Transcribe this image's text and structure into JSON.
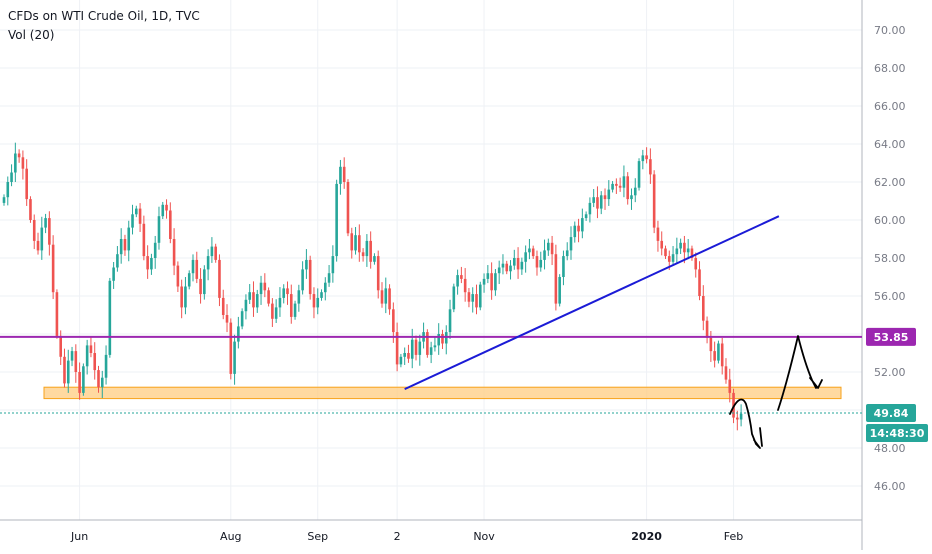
{
  "header": {
    "title": "CFDs on WTI Crude Oil, 1D, TVC",
    "indicator": "Vol (20)"
  },
  "colors": {
    "up": "#26a69a",
    "down": "#ef5350",
    "grid": "#eef1f5",
    "axis": "#787b86",
    "trendline": "#1b1bd6",
    "resistance": "#9c27b0",
    "support_fill": "#ffcc80",
    "support_border": "#f7a21b",
    "price_tag": "#26a69a",
    "drawing": "#000000"
  },
  "chart_data": {
    "type": "candlestick",
    "title": "CFDs on WTI Crude Oil, 1D, TVC",
    "xlabel": "",
    "ylabel": "",
    "ylim": [
      44.2,
      71.3
    ],
    "y_ticks": [
      "46.00",
      "48.00",
      "50.00",
      "52.00",
      "54.00",
      "56.00",
      "58.00",
      "60.00",
      "62.00",
      "64.00",
      "66.00",
      "68.00",
      "70.00"
    ],
    "x_axis_labels": [
      {
        "label": "Jun",
        "index": 20
      },
      {
        "label": "Aug",
        "index": 60
      },
      {
        "label": "Sep",
        "index": 83
      },
      {
        "label": "2",
        "index": 104
      },
      {
        "label": "Nov",
        "index": 127
      },
      {
        "label": "2020",
        "index": 170
      },
      {
        "label": "Feb",
        "index": 193
      }
    ],
    "x_axis_bold": [
      "2020"
    ],
    "grid": true,
    "last_price": "49.84",
    "countdown": "14:48:30",
    "horizontal_level": {
      "value": 53.85,
      "label": "53.85"
    },
    "support_zone": {
      "low": 50.6,
      "high": 51.2
    },
    "trendline": {
      "from": {
        "index": 106,
        "price": 51.1
      },
      "to": {
        "index": 205,
        "price": 60.2
      }
    },
    "closes": [
      61.2,
      62.0,
      62.5,
      63.5,
      63.3,
      62.7,
      61.1,
      60.0,
      58.9,
      58.4,
      59.6,
      60.1,
      58.7,
      56.2,
      53.9,
      52.8,
      51.4,
      52.6,
      53.1,
      52.0,
      50.9,
      52.3,
      53.4,
      53.0,
      52.1,
      51.2,
      51.7,
      52.9,
      56.8,
      57.5,
      58.2,
      59.0,
      58.4,
      59.6,
      60.3,
      60.6,
      59.8,
      58.1,
      57.4,
      58.0,
      58.8,
      60.2,
      60.8,
      60.5,
      59.0,
      57.6,
      56.5,
      55.4,
      56.5,
      57.2,
      57.9,
      56.9,
      56.1,
      57.4,
      58.1,
      58.6,
      57.9,
      55.9,
      55.0,
      54.6,
      51.9,
      53.6,
      54.4,
      55.2,
      55.8,
      56.2,
      55.4,
      56.1,
      56.7,
      56.3,
      55.6,
      54.8,
      55.4,
      55.9,
      56.4,
      56.1,
      54.9,
      55.6,
      56.3,
      57.4,
      57.9,
      56.1,
      55.4,
      55.9,
      56.2,
      56.7,
      57.2,
      58.1,
      61.9,
      62.8,
      62.0,
      59.3,
      58.4,
      59.2,
      58.3,
      58.1,
      58.9,
      57.8,
      58.1,
      56.3,
      55.6,
      56.4,
      55.3,
      54.1,
      52.4,
      52.8,
      53.0,
      52.7,
      53.7,
      52.9,
      53.6,
      54.1,
      52.9,
      53.3,
      53.4,
      54.0,
      53.5,
      54.1,
      55.3,
      56.5,
      57.1,
      56.9,
      56.2,
      55.7,
      56.1,
      55.4,
      56.6,
      56.9,
      57.2,
      56.3,
      57.2,
      57.5,
      57.7,
      57.3,
      57.6,
      58.0,
      57.4,
      57.8,
      58.3,
      58.5,
      58.1,
      57.5,
      57.9,
      58.4,
      58.8,
      58.2,
      55.6,
      57.0,
      58.1,
      58.4,
      59.1,
      59.7,
      59.4,
      60.1,
      60.3,
      60.9,
      61.2,
      60.6,
      61.3,
      61.1,
      61.6,
      61.9,
      61.8,
      61.7,
      62.3,
      61.1,
      61.3,
      61.7,
      63.1,
      63.4,
      63.2,
      62.4,
      59.6,
      58.9,
      58.5,
      58.1,
      57.8,
      58.2,
      58.5,
      58.8,
      58.3,
      58.5,
      58.0,
      57.4,
      56.0,
      54.7,
      53.8,
      53.1,
      52.6,
      53.5,
      52.3,
      51.6,
      50.9,
      49.6,
      49.5,
      49.8
    ]
  },
  "annotations": {
    "hand_drawn_arrows": 2
  }
}
